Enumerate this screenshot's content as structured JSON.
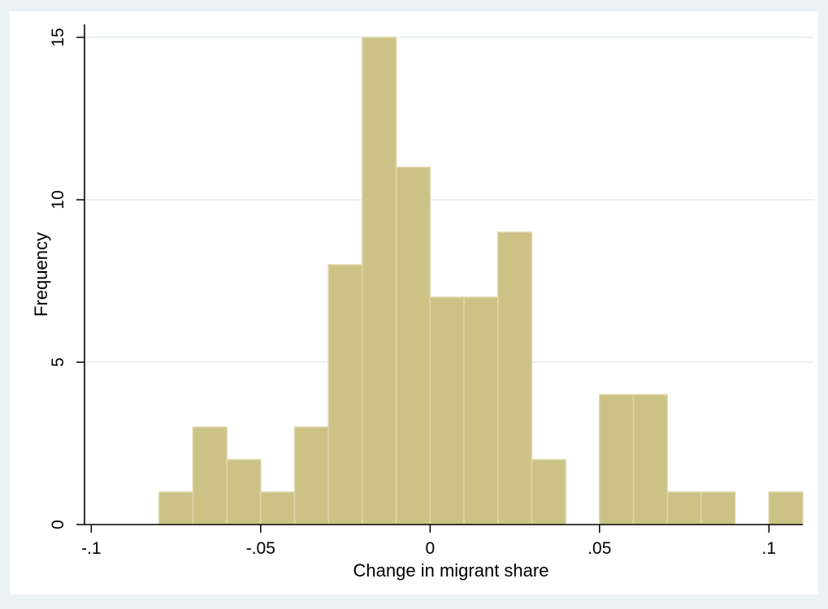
{
  "chart_data": {
    "type": "bar",
    "title": "",
    "xlabel": "Change in migrant share",
    "ylabel": "Frequency",
    "bin_width": 0.01,
    "bins": [
      {
        "start": -0.08,
        "end": -0.07,
        "count": 1
      },
      {
        "start": -0.07,
        "end": -0.06,
        "count": 3
      },
      {
        "start": -0.06,
        "end": -0.05,
        "count": 2
      },
      {
        "start": -0.05,
        "end": -0.04,
        "count": 1
      },
      {
        "start": -0.04,
        "end": -0.03,
        "count": 3
      },
      {
        "start": -0.03,
        "end": -0.02,
        "count": 8
      },
      {
        "start": -0.02,
        "end": -0.01,
        "count": 15
      },
      {
        "start": -0.01,
        "end": 0.0,
        "count": 11
      },
      {
        "start": 0.0,
        "end": 0.01,
        "count": 7
      },
      {
        "start": 0.01,
        "end": 0.02,
        "count": 7
      },
      {
        "start": 0.02,
        "end": 0.03,
        "count": 9
      },
      {
        "start": 0.03,
        "end": 0.04,
        "count": 2
      },
      {
        "start": 0.05,
        "end": 0.06,
        "count": 4
      },
      {
        "start": 0.06,
        "end": 0.07,
        "count": 4
      },
      {
        "start": 0.07,
        "end": 0.08,
        "count": 1
      },
      {
        "start": 0.08,
        "end": 0.09,
        "count": 1
      },
      {
        "start": 0.1,
        "end": 0.11,
        "count": 1
      }
    ],
    "xlim": [
      -0.1,
      0.11
    ],
    "ylim": [
      0,
      15
    ],
    "x_ticks": [
      {
        "value": -0.1,
        "label": "-.1"
      },
      {
        "value": -0.05,
        "label": "-.05"
      },
      {
        "value": 0,
        "label": "0"
      },
      {
        "value": 0.05,
        "label": ".05"
      },
      {
        "value": 0.1,
        "label": ".1"
      }
    ],
    "y_ticks": [
      {
        "value": 0,
        "label": "0"
      },
      {
        "value": 5,
        "label": "5"
      },
      {
        "value": 10,
        "label": "10"
      },
      {
        "value": 15,
        "label": "15"
      }
    ],
    "grid": true,
    "colors": {
      "background": "#eaf2f3",
      "plot_background": "#ffffff",
      "bar_fill": "#ccc285",
      "bar_edge": "#ddd6ac",
      "grid": "#e3ecee",
      "axis": "#000000"
    }
  }
}
